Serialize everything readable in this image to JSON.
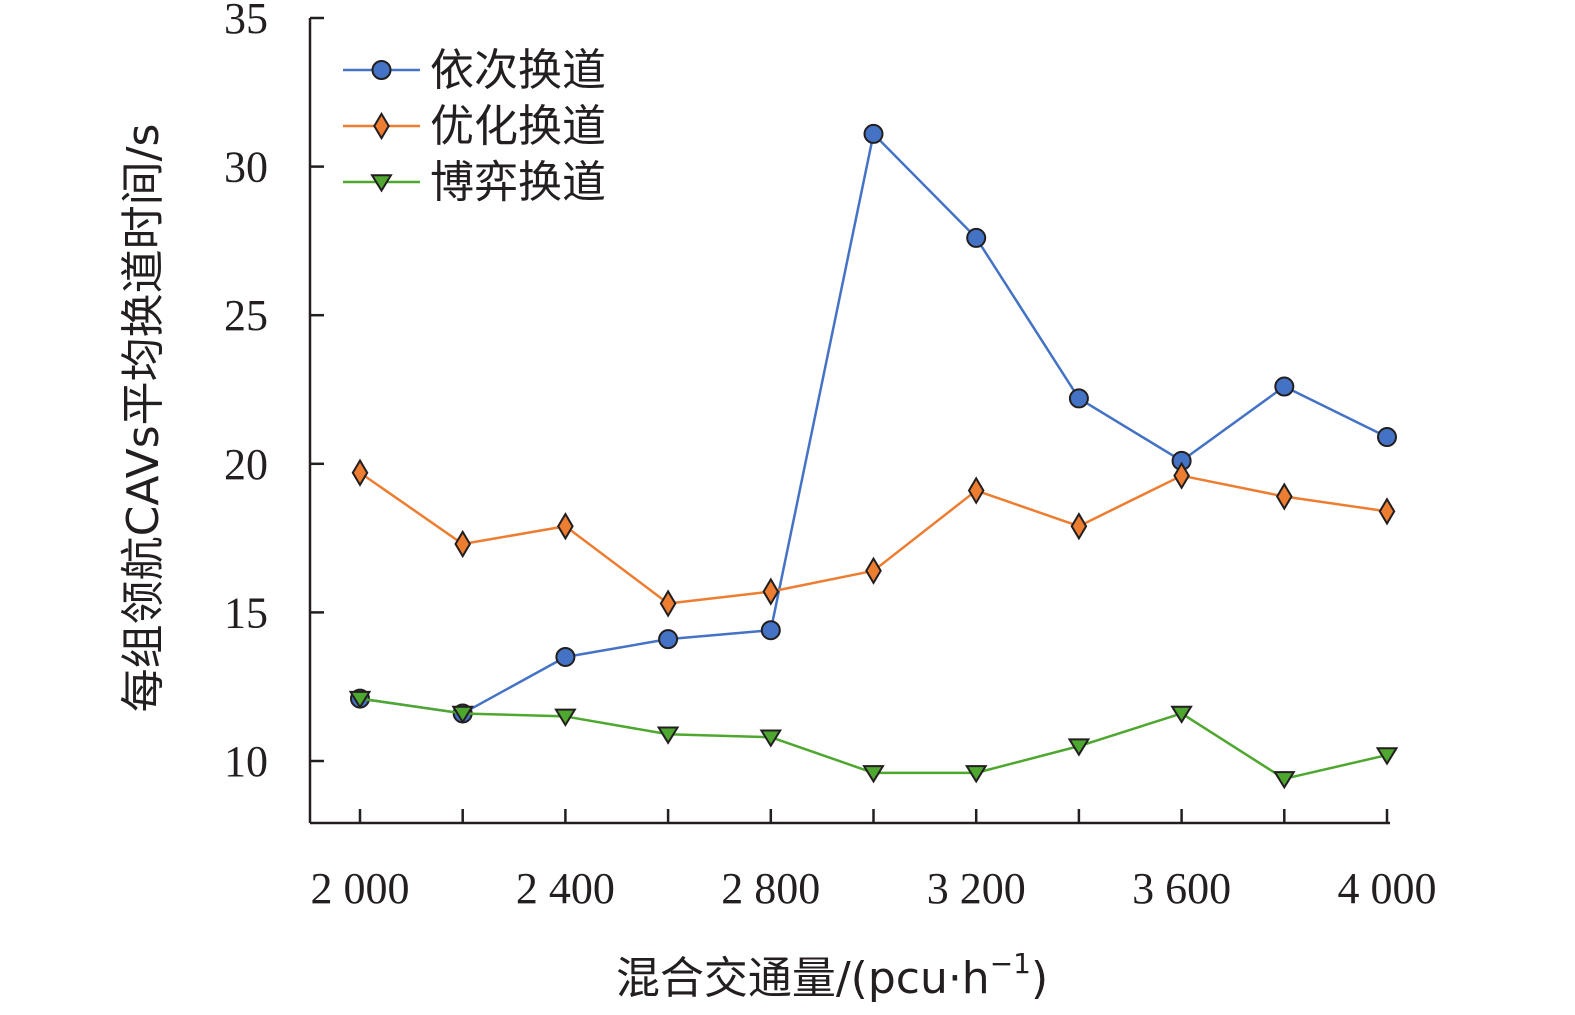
{
  "chart_data": {
    "type": "line",
    "title": "",
    "xlabel": "混合交通量/(pcu·h",
    "xlabel_sup": "−1",
    "xlabel_suffix": ")",
    "ylabel": "每组领航CAVs平均换道时间/s",
    "x": [
      2000,
      2200,
      2400,
      2600,
      2800,
      3000,
      3200,
      3400,
      3600,
      3800,
      4000
    ],
    "xlim": [
      1900,
      4000
    ],
    "ylim": [
      8,
      35
    ],
    "x_ticks": [
      2000,
      2400,
      2800,
      3200,
      3600,
      4000
    ],
    "x_tick_labels": [
      "2 000",
      "2 400",
      "2 800",
      "3 200",
      "3 600",
      "4 000"
    ],
    "y_ticks": [
      10,
      15,
      20,
      25,
      30,
      35
    ],
    "y_tick_labels": [
      "10",
      "15",
      "20",
      "25",
      "30",
      "35"
    ],
    "legend_position": "top-left",
    "grid": false,
    "series": [
      {
        "name": "依次换道",
        "color": "#4472c4",
        "marker": "circle",
        "values": [
          12.1,
          11.6,
          13.5,
          14.1,
          14.4,
          31.1,
          27.6,
          22.2,
          20.1,
          22.6,
          20.9
        ]
      },
      {
        "name": "优化换道",
        "color": "#ed7d31",
        "marker": "diamond",
        "values": [
          19.7,
          17.3,
          17.9,
          15.3,
          15.7,
          16.4,
          19.1,
          17.9,
          19.6,
          18.9,
          18.4
        ]
      },
      {
        "name": "博弈换道",
        "color": "#4ea72e",
        "marker": "triangle-down",
        "values": [
          12.1,
          11.6,
          11.5,
          10.9,
          10.8,
          9.6,
          9.6,
          10.5,
          11.6,
          9.4,
          10.2
        ]
      }
    ]
  }
}
